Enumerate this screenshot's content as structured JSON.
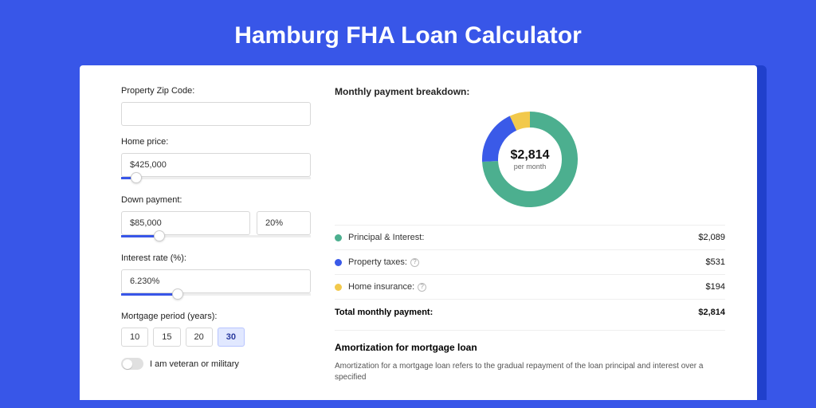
{
  "colors": {
    "page_bg": "#3856e8",
    "card_bg": "#ffffff",
    "shadow_bg": "#2040cc",
    "slider_fill": "#3856e8",
    "border": "#d8d8d8"
  },
  "title": "Hamburg FHA Loan Calculator",
  "form": {
    "zip": {
      "label": "Property Zip Code:",
      "value": ""
    },
    "home_price": {
      "label": "Home price:",
      "value": "$425,000",
      "slider_pct": 8
    },
    "down_payment": {
      "label": "Down payment:",
      "amount": "$85,000",
      "pct": "20%",
      "slider_pct": 20
    },
    "interest_rate": {
      "label": "Interest rate (%):",
      "value": "6.230%",
      "slider_pct": 30
    },
    "mortgage_period": {
      "label": "Mortgage period (years):",
      "options": [
        "10",
        "15",
        "20",
        "30"
      ],
      "selected": "30"
    },
    "veteran": {
      "label": "I am veteran or military",
      "on": false
    }
  },
  "breakdown": {
    "title": "Monthly payment breakdown:",
    "donut": {
      "amount": "$2,814",
      "sub": "per month",
      "slices": [
        {
          "color": "#4caf8f",
          "pct": 74.2
        },
        {
          "color": "#3a5ae8",
          "pct": 18.9
        },
        {
          "color": "#f2c94c",
          "pct": 6.9
        }
      ],
      "stroke_width": 20,
      "radius": 50
    },
    "items": [
      {
        "swatch": "#4caf8f",
        "label": "Principal & Interest:",
        "info": false,
        "value": "$2,089"
      },
      {
        "swatch": "#3a5ae8",
        "label": "Property taxes:",
        "info": true,
        "value": "$531"
      },
      {
        "swatch": "#f2c94c",
        "label": "Home insurance:",
        "info": true,
        "value": "$194"
      }
    ],
    "total": {
      "label": "Total monthly payment:",
      "value": "$2,814"
    }
  },
  "amort": {
    "title": "Amortization for mortgage loan",
    "text": "Amortization for a mortgage loan refers to the gradual repayment of the loan principal and interest over a specified"
  }
}
